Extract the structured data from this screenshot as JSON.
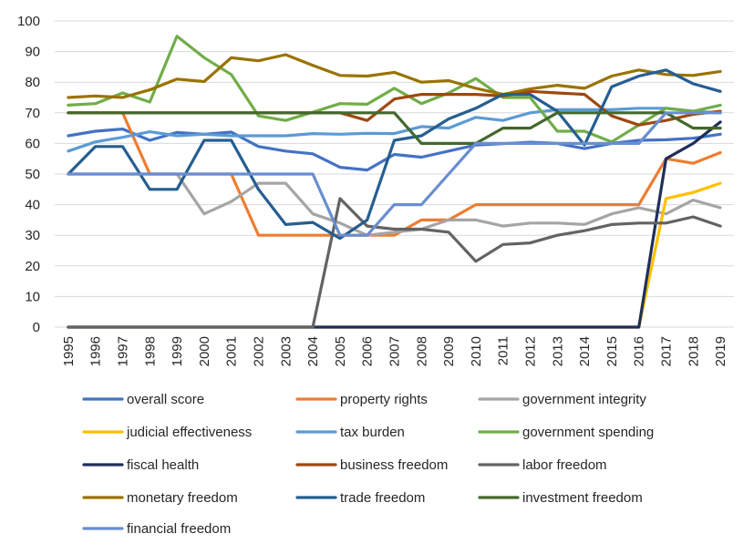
{
  "chart_data": {
    "type": "line",
    "title": "",
    "xlabel": "",
    "ylabel": "",
    "ylim": [
      0,
      100
    ],
    "y_ticks": [
      0,
      10,
      20,
      30,
      40,
      50,
      60,
      70,
      80,
      90,
      100
    ],
    "grid": "horizontal",
    "legend_position": "bottom",
    "categories": [
      "1995",
      "1996",
      "1997",
      "1998",
      "1999",
      "2000",
      "2001",
      "2002",
      "2003",
      "2004",
      "2005",
      "2006",
      "2007",
      "2008",
      "2009",
      "2010",
      "2011",
      "2012",
      "2013",
      "2014",
      "2015",
      "2016",
      "2017",
      "2018",
      "2019"
    ],
    "series": [
      {
        "name": "overall score",
        "color": "#4472C4",
        "values": [
          62.5,
          64,
          64.7,
          61,
          63.6,
          63,
          63.7,
          59,
          57.5,
          56.6,
          52.2,
          51.3,
          56.4,
          55.5,
          57.5,
          59.5,
          59.9,
          60.4,
          60,
          58.3,
          60,
          61,
          61.2,
          61.7,
          63
        ]
      },
      {
        "name": "property rights",
        "color": "#ED7D31",
        "values": [
          70,
          70,
          70,
          50,
          50,
          50,
          50,
          30,
          30,
          30,
          30,
          30,
          30,
          35,
          35,
          40,
          40,
          40,
          40,
          40,
          40,
          40,
          55,
          53.5,
          57
        ]
      },
      {
        "name": "government integrity",
        "color": "#A5A5A5",
        "values": [
          50,
          50,
          50,
          50,
          50,
          37,
          41,
          47,
          47,
          37,
          34,
          30,
          31,
          32,
          35,
          35,
          33,
          34,
          34,
          33.5,
          37,
          39,
          37,
          41.5,
          39
        ]
      },
      {
        "name": "judicial effectiveness",
        "color": "#FFC000",
        "values": [
          0,
          0,
          0,
          0,
          0,
          0,
          0,
          0,
          0,
          0,
          0,
          0,
          0,
          0,
          0,
          0,
          0,
          0,
          0,
          0,
          0,
          0,
          42,
          44,
          47
        ]
      },
      {
        "name": "tax burden",
        "color": "#5B9BD5",
        "values": [
          57.5,
          60.5,
          62,
          63.8,
          62.5,
          63,
          62.5,
          62.5,
          62.5,
          63.2,
          63,
          63.3,
          63.2,
          65.5,
          65,
          68.5,
          67.5,
          70,
          71,
          71,
          71,
          71.5,
          71.5,
          70.5,
          70
        ]
      },
      {
        "name": "government spending",
        "color": "#70AD47",
        "values": [
          72.5,
          73,
          76.5,
          73.5,
          95,
          88,
          82.5,
          69,
          67.5,
          70.2,
          73,
          72.8,
          78,
          73,
          76.5,
          81.2,
          75,
          75,
          64,
          64,
          60.5,
          66,
          71.5,
          70.5,
          72.5
        ]
      },
      {
        "name": "fiscal health",
        "color": "#1F2F5C",
        "values": [
          0,
          0,
          0,
          0,
          0,
          0,
          0,
          0,
          0,
          0,
          0,
          0,
          0,
          0,
          0,
          0,
          0,
          0,
          0,
          0,
          0,
          0,
          55,
          60,
          67
        ]
      },
      {
        "name": "business freedom",
        "color": "#9E480E",
        "values": [
          70,
          70,
          70,
          70,
          70,
          70,
          70,
          70,
          70,
          70,
          70,
          67.5,
          74.5,
          76,
          76,
          76,
          75.5,
          77,
          76.5,
          76,
          69,
          66,
          67.5,
          69.5,
          70.5
        ]
      },
      {
        "name": "labor freedom",
        "color": "#636363",
        "values": [
          0,
          0,
          0,
          0,
          0,
          0,
          0,
          0,
          0,
          0,
          42,
          33,
          32,
          32,
          31,
          21.5,
          27,
          27.5,
          30,
          31.5,
          33.5,
          34,
          34,
          36,
          33
        ]
      },
      {
        "name": "monetary freedom",
        "color": "#997300",
        "values": [
          75,
          75.5,
          75,
          77.5,
          81,
          80.2,
          88,
          87,
          89,
          85.5,
          82.2,
          82,
          83.2,
          80,
          80.5,
          78,
          76,
          77.8,
          79,
          78,
          82,
          84,
          82.5,
          82.2,
          83.5
        ]
      },
      {
        "name": "trade freedom",
        "color": "#255E91",
        "values": [
          50,
          59,
          59,
          45,
          45,
          61,
          61,
          45,
          33.5,
          34.2,
          29,
          35,
          61,
          62.5,
          68,
          71.5,
          76,
          76,
          70.5,
          59.5,
          78.5,
          82,
          84,
          79.5,
          77
        ]
      },
      {
        "name": "investment freedom",
        "color": "#43682B",
        "values": [
          70,
          70,
          70,
          70,
          70,
          70,
          70,
          70,
          70,
          70,
          70,
          70,
          70,
          60,
          60,
          60,
          65,
          65,
          70,
          70,
          70,
          70,
          70,
          65,
          65
        ]
      },
      {
        "name": "financial freedom",
        "color": "#698ED0",
        "values": [
          50,
          50,
          50,
          50,
          50,
          50,
          50,
          50,
          50,
          50,
          30,
          30,
          40,
          40,
          50,
          60,
          60,
          60,
          60,
          60,
          60,
          60,
          70,
          70,
          70
        ]
      }
    ]
  }
}
